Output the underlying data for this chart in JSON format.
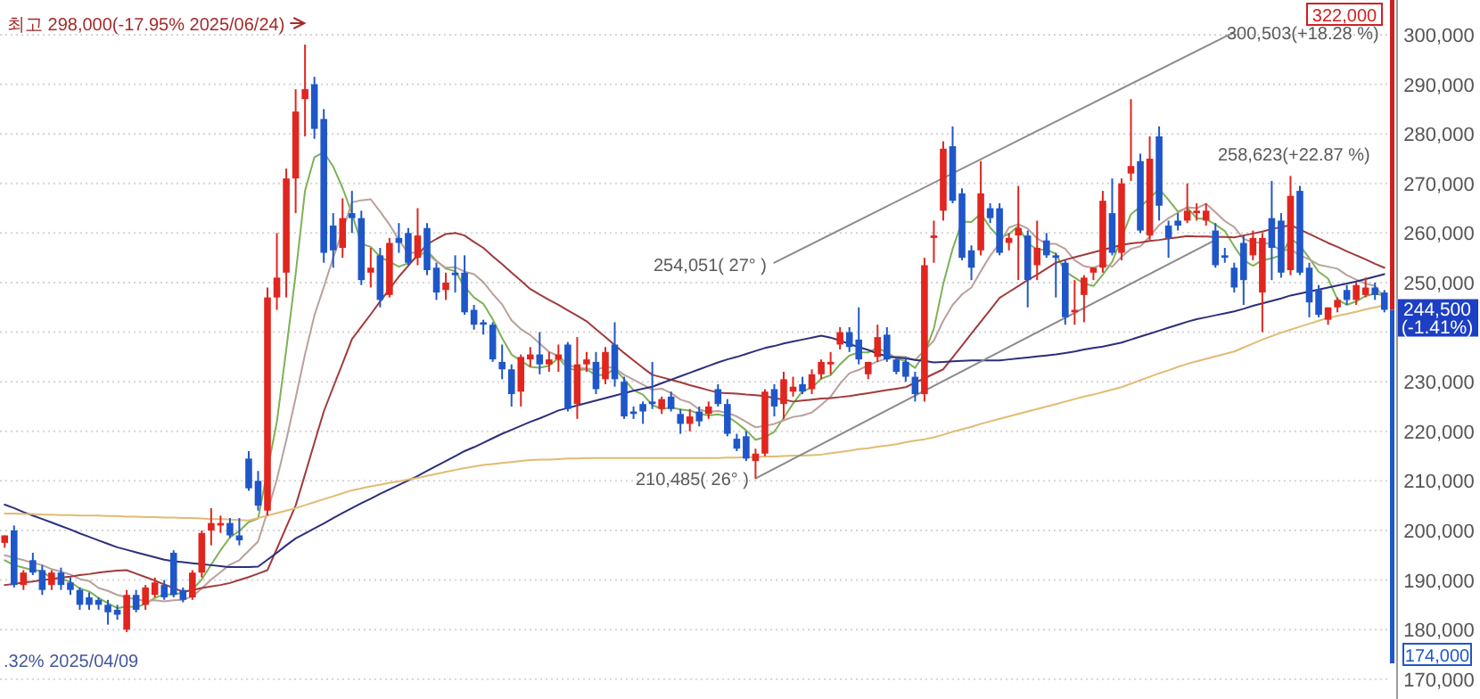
{
  "chart_data": {
    "type": "candlestick",
    "categories": [
      null,
      null,
      null,
      null,
      null,
      null,
      null,
      null,
      null,
      null,
      null,
      null,
      null,
      null,
      null,
      null,
      null,
      null,
      null,
      null,
      null,
      null,
      null,
      null,
      null,
      null,
      null,
      null,
      null,
      null,
      null,
      null,
      null,
      null,
      null,
      null,
      null,
      null,
      null,
      null,
      null,
      null,
      null,
      null,
      null,
      null,
      null,
      null,
      null,
      null,
      null,
      null,
      null,
      null,
      null,
      null,
      null,
      null,
      null,
      null,
      null,
      null,
      null,
      null,
      null,
      null,
      null,
      null,
      null,
      null,
      null,
      null,
      null,
      null,
      null,
      null,
      null,
      null,
      null,
      null,
      null,
      null,
      null,
      null,
      null,
      null,
      null,
      null,
      null,
      null,
      null,
      null,
      null,
      null,
      null,
      null,
      null,
      null,
      null,
      null,
      null,
      null,
      null,
      null,
      null,
      null,
      null,
      null,
      null,
      null,
      null,
      null,
      null,
      null,
      null,
      null,
      null,
      null,
      null,
      null,
      null,
      null,
      null,
      null,
      null,
      null,
      null,
      null,
      null,
      null,
      null,
      null,
      null,
      null,
      null,
      null,
      null,
      null,
      null,
      null,
      null,
      null,
      null,
      null,
      null,
      null,
      null,
      null
    ],
    "ohlc": [
      [
        197500,
        199000,
        196500,
        199000
      ],
      [
        200000,
        201000,
        188500,
        189000
      ],
      [
        189000,
        192000,
        188000,
        191500
      ],
      [
        194000,
        195500,
        191000,
        191500
      ],
      [
        192000,
        193000,
        187000,
        188000
      ],
      [
        189000,
        192000,
        188000,
        191500
      ],
      [
        191500,
        192500,
        188000,
        189000
      ],
      [
        189500,
        190500,
        187000,
        188000
      ],
      [
        188000,
        188500,
        184000,
        185000
      ],
      [
        186500,
        187500,
        184000,
        185000
      ],
      [
        186000,
        186500,
        184000,
        185000
      ],
      [
        185000,
        186000,
        181000,
        183500
      ],
      [
        184000,
        185000,
        182000,
        183000
      ],
      [
        180000,
        188000,
        179500,
        187000
      ],
      [
        187000,
        188000,
        183500,
        184000
      ],
      [
        185000,
        189000,
        184000,
        188500
      ],
      [
        187000,
        190500,
        186500,
        189500
      ],
      [
        189000,
        190000,
        186000,
        186500
      ],
      [
        195500,
        196000,
        186500,
        187000
      ],
      [
        188000,
        188500,
        185500,
        186000
      ],
      [
        186500,
        192000,
        186000,
        191500
      ],
      [
        191500,
        200000,
        190500,
        199500
      ],
      [
        200000,
        204500,
        197000,
        201500
      ],
      [
        201000,
        203000,
        199500,
        201500
      ],
      [
        201500,
        202500,
        198500,
        199000
      ],
      [
        199000,
        202500,
        197000,
        198000
      ],
      [
        214500,
        216000,
        208000,
        208500
      ],
      [
        210000,
        212000,
        204000,
        205000
      ],
      [
        204000,
        249000,
        203000,
        247000
      ],
      [
        247000,
        260000,
        244500,
        251000
      ],
      [
        252000,
        273000,
        247000,
        271000
      ],
      [
        271000,
        289000,
        264000,
        284500
      ],
      [
        287000,
        298000,
        279500,
        289000
      ],
      [
        290000,
        291500,
        279000,
        281000
      ],
      [
        283000,
        285000,
        254000,
        256000
      ],
      [
        261500,
        264000,
        253000,
        256500
      ],
      [
        257000,
        267000,
        255000,
        263000
      ],
      [
        264000,
        268500,
        260000,
        263000
      ],
      [
        263000,
        264500,
        249500,
        250500
      ],
      [
        252000,
        257000,
        249000,
        253000
      ],
      [
        255500,
        257000,
        245000,
        246500
      ],
      [
        247500,
        259000,
        247000,
        258000
      ],
      [
        259000,
        262000,
        256000,
        258000
      ],
      [
        260000,
        261000,
        253500,
        254000
      ],
      [
        255000,
        265000,
        253500,
        259500
      ],
      [
        261000,
        262000,
        251500,
        252500
      ],
      [
        253000,
        254000,
        246500,
        248000
      ],
      [
        248500,
        252000,
        246500,
        250000
      ],
      [
        252000,
        255500,
        248000,
        251500
      ],
      [
        252000,
        255500,
        243500,
        244000
      ],
      [
        244500,
        245500,
        240500,
        241500
      ],
      [
        242000,
        242500,
        239500,
        241500
      ],
      [
        241500,
        242000,
        234000,
        234500
      ],
      [
        234000,
        237500,
        230500,
        232500
      ],
      [
        232500,
        233500,
        225000,
        227500
      ],
      [
        228000,
        235500,
        225000,
        235000
      ],
      [
        234500,
        237000,
        233000,
        235500
      ],
      [
        235500,
        240000,
        231500,
        233500
      ],
      [
        233500,
        236000,
        232000,
        234500
      ],
      [
        234500,
        237500,
        232000,
        235500
      ],
      [
        237500,
        238000,
        224000,
        224500
      ],
      [
        225500,
        239000,
        222500,
        233500
      ],
      [
        233500,
        236000,
        232000,
        234500
      ],
      [
        234000,
        236000,
        227500,
        228500
      ],
      [
        230500,
        237000,
        229500,
        236000
      ],
      [
        237500,
        242000,
        229000,
        230500
      ],
      [
        230000,
        231000,
        222500,
        223000
      ],
      [
        224000,
        225000,
        222500,
        223500
      ],
      [
        225500,
        226000,
        221500,
        224000
      ],
      [
        226000,
        234000,
        224500,
        225500
      ],
      [
        224500,
        227000,
        223500,
        226500
      ],
      [
        227000,
        228000,
        224000,
        224500
      ],
      [
        223500,
        224500,
        219500,
        221500
      ],
      [
        221500,
        224500,
        220000,
        223000
      ],
      [
        224000,
        225000,
        221000,
        222000
      ],
      [
        223500,
        226000,
        222500,
        225000
      ],
      [
        228500,
        229500,
        225000,
        225500
      ],
      [
        225500,
        226500,
        219000,
        219500
      ],
      [
        218500,
        219500,
        216000,
        216500
      ],
      [
        219000,
        220000,
        214000,
        214500
      ],
      [
        214000,
        216500,
        210500,
        215500
      ],
      [
        215500,
        228500,
        215000,
        228000
      ],
      [
        228500,
        229500,
        223000,
        225000
      ],
      [
        225500,
        232000,
        222500,
        230500
      ],
      [
        228000,
        231000,
        227000,
        229000
      ],
      [
        229500,
        231000,
        227500,
        228000
      ],
      [
        228500,
        232500,
        227500,
        231500
      ],
      [
        231500,
        234500,
        230500,
        234000
      ],
      [
        233500,
        236000,
        231500,
        234000
      ],
      [
        237500,
        241000,
        236500,
        240000
      ],
      [
        240000,
        241000,
        236000,
        237000
      ],
      [
        238500,
        245000,
        233500,
        234500
      ],
      [
        231500,
        234000,
        230500,
        234000
      ],
      [
        235000,
        241500,
        234000,
        239000
      ],
      [
        239500,
        241000,
        234000,
        234500
      ],
      [
        234500,
        235000,
        231500,
        232000
      ],
      [
        234000,
        235000,
        230000,
        231000
      ],
      [
        231000,
        232000,
        226000,
        227500
      ],
      [
        227500,
        255000,
        226000,
        253500
      ],
      [
        259000,
        262500,
        254000,
        259500
      ],
      [
        264500,
        278500,
        262500,
        277000
      ],
      [
        277500,
        281500,
        266000,
        266500
      ],
      [
        268000,
        269000,
        254500,
        255000
      ],
      [
        256500,
        257500,
        250500,
        253000
      ],
      [
        256500,
        274500,
        255500,
        268000
      ],
      [
        265000,
        266000,
        262000,
        263000
      ],
      [
        265000,
        266000,
        255500,
        256000
      ],
      [
        258000,
        260000,
        256500,
        259000
      ],
      [
        259500,
        269500,
        250500,
        261000
      ],
      [
        259500,
        260500,
        245000,
        250500
      ],
      [
        253500,
        262500,
        250500,
        257000
      ],
      [
        258500,
        260000,
        255000,
        255500
      ],
      [
        255500,
        256000,
        247000,
        255000
      ],
      [
        254000,
        254500,
        241500,
        243000
      ],
      [
        244000,
        250500,
        241500,
        244500
      ],
      [
        247500,
        251500,
        242000,
        251000
      ],
      [
        252000,
        253000,
        250500,
        253000
      ],
      [
        253000,
        268500,
        252000,
        266500
      ],
      [
        264000,
        271000,
        255500,
        256000
      ],
      [
        256000,
        271000,
        254500,
        270000
      ],
      [
        272000,
        287000,
        270500,
        273500
      ],
      [
        274500,
        276000,
        260000,
        260500
      ],
      [
        259500,
        279500,
        258500,
        275000
      ],
      [
        279500,
        281500,
        262500,
        265500
      ],
      [
        261500,
        262500,
        255000,
        259000
      ],
      [
        262500,
        264000,
        260500,
        261500
      ],
      [
        262500,
        270000,
        262000,
        264500
      ],
      [
        264000,
        266000,
        262500,
        264500
      ],
      [
        262500,
        266000,
        261500,
        264500
      ],
      [
        260500,
        262000,
        253000,
        253500
      ],
      [
        255500,
        257000,
        254000,
        255000
      ],
      [
        253000,
        254000,
        248000,
        249000
      ],
      [
        258000,
        259500,
        245500,
        250500
      ],
      [
        255500,
        260500,
        254500,
        259000
      ],
      [
        248000,
        260000,
        240000,
        259000
      ],
      [
        263000,
        270500,
        250500,
        257000
      ],
      [
        262500,
        264000,
        251000,
        252000
      ],
      [
        252500,
        271500,
        251500,
        267500
      ],
      [
        268500,
        269500,
        251500,
        252000
      ],
      [
        253000,
        254000,
        243000,
        246000
      ],
      [
        248500,
        249500,
        243000,
        243500
      ],
      [
        242500,
        245000,
        241500,
        245000
      ],
      [
        245000,
        247000,
        244000,
        246500
      ],
      [
        248500,
        249500,
        245500,
        246500
      ],
      [
        246500,
        250000,
        245500,
        249500
      ],
      [
        247500,
        251000,
        247000,
        249000
      ],
      [
        249000,
        250000,
        246500,
        247500
      ],
      [
        248000,
        248500,
        244000,
        244500
      ]
    ],
    "colors": [
      "#e0261f",
      "#1f57c9",
      "#e0261f",
      "#1f57c9",
      "#1f57c9",
      "#e0261f",
      "#1f57c9",
      "#1f57c9",
      "#1f57c9",
      "#1f57c9",
      "#1f57c9",
      "#1f57c9",
      "#1f57c9",
      "#e0261f",
      "#1f57c9",
      "#e0261f",
      "#e0261f",
      "#1f57c9",
      "#1f57c9",
      "#1f57c9",
      "#e0261f",
      "#e0261f",
      "#e0261f",
      "#e0261f",
      "#1f57c9",
      "#1f57c9",
      "#1f57c9",
      "#1f57c9",
      "#e0261f",
      "#e0261f",
      "#e0261f",
      "#e0261f",
      "#e0261f",
      "#1f57c9",
      "#1f57c9",
      "#1f57c9",
      "#e0261f",
      "#1f57c9",
      "#1f57c9",
      "#e0261f",
      "#1f57c9",
      "#e0261f",
      "#1f57c9",
      "#1f57c9",
      "#e0261f",
      "#1f57c9",
      "#1f57c9",
      "#e0261f",
      "#1f57c9",
      "#1f57c9",
      "#1f57c9",
      "#1f57c9",
      "#1f57c9",
      "#1f57c9",
      "#1f57c9",
      "#e0261f",
      "#e0261f",
      "#1f57c9",
      "#e0261f",
      "#e0261f",
      "#1f57c9",
      "#e0261f",
      "#e0261f",
      "#1f57c9",
      "#e0261f",
      "#1f57c9",
      "#1f57c9",
      "#1f57c9",
      "#1f57c9",
      "#1f57c9",
      "#e0261f",
      "#1f57c9",
      "#1f57c9",
      "#e0261f",
      "#1f57c9",
      "#e0261f",
      "#1f57c9",
      "#1f57c9",
      "#1f57c9",
      "#1f57c9",
      "#e0261f",
      "#e0261f",
      "#1f57c9",
      "#e0261f",
      "#e0261f",
      "#1f57c9",
      "#e0261f",
      "#e0261f",
      "#e0261f",
      "#e0261f",
      "#1f57c9",
      "#1f57c9",
      "#e0261f",
      "#e0261f",
      "#1f57c9",
      "#1f57c9",
      "#1f57c9",
      "#1f57c9",
      "#e0261f",
      "#e0261f",
      "#e0261f",
      "#1f57c9",
      "#1f57c9",
      "#1f57c9",
      "#e0261f",
      "#1f57c9",
      "#1f57c9",
      "#e0261f",
      "#e0261f",
      "#1f57c9",
      "#e0261f",
      "#1f57c9",
      "#1f57c9",
      "#1f57c9",
      "#e0261f",
      "#e0261f",
      "#e0261f",
      "#e0261f",
      "#1f57c9",
      "#e0261f",
      "#e0261f",
      "#1f57c9",
      "#e0261f",
      "#1f57c9",
      "#1f57c9",
      "#1f57c9",
      "#e0261f",
      "#e0261f",
      "#e0261f",
      "#1f57c9",
      "#1f57c9",
      "#1f57c9",
      "#1f57c9",
      "#e0261f",
      "#e0261f",
      "#1f57c9",
      "#1f57c9",
      "#e0261f",
      "#1f57c9",
      "#1f57c9",
      "#1f57c9",
      "#e0261f",
      "#e0261f",
      "#1f57c9",
      "#e0261f",
      "#e0261f",
      "#1f57c9",
      "#1f57c9"
    ],
    "series": [
      {
        "type": "line",
        "color": "#7db255",
        "values": [
          194000,
          193000,
          192500,
          192000,
          191800,
          190300,
          190300,
          189600,
          188300,
          187700,
          186400,
          185300,
          184300,
          184700,
          184500,
          185200,
          186400,
          187100,
          187100,
          187500,
          188100,
          190100,
          193100,
          196000,
          198600,
          199900,
          201700,
          202400,
          null,
          221900,
          236500,
          251700,
          268500,
          275300,
          276300,
          273400,
          269100,
          263900,
          257800,
          257200,
          255200,
          254200,
          253200,
          253900,
          255200,
          256400,
          254400,
          252800,
          252300,
          249200,
          247000,
          245700,
          242600,
          238800,
          235500,
          234200,
          233000,
          232800,
          233200,
          234800,
          232700,
          232300,
          232500,
          231300,
          231400,
          232600,
          230500,
          228300,
          227400,
          225300,
          224500,
          224800,
          224400,
          224200,
          223500,
          223200,
          223400,
          223000,
          221700,
          220200,
          218300,
          218800,
          219900,
          222700,
          225600,
          228100,
          228800,
          230600,
          231300,
          233500,
          235300,
          235900,
          235900,
          236900,
          235800,
          234800,
          234100,
          232800,
          235700,
          240700,
          249700,
          256800,
          262300,
          262200,
          263900,
          261100,
          259000,
          259800,
          261400,
          257900,
          256700,
          256600,
          255800,
          252200,
          251000,
          249800,
          249300,
          251600,
          254200,
          null,
          263800,
          265300,
          267000,
          268900,
          266700,
          264300,
          265100,
          263000,
          262800,
          261700,
          260400,
          257300,
          254500,
          253400,
          254500,
          254900,
          255500,
          258900,
          257500,
          254900,
          252200,
          250800,
          246600,
          245500,
          246200,
          247300,
          247800,
          247400
        ]
      },
      {
        "type": "line",
        "color": "#b9a09c",
        "values": [
          195000,
          194500,
          194000,
          193500,
          193000,
          192200,
          191700,
          191100,
          190200,
          189800,
          188400,
          187800,
          187000,
          186500,
          186100,
          185800,
          185900,
          185700,
          185900,
          186000,
          186700,
          188300,
          190100,
          191600,
          193100,
          194000,
          195900,
          197800,
          203800,
          210300,
          218200,
          226700,
          235500,
          243400,
          249100,
          255000,
          260400,
          266200,
          266600,
          266800,
          264300,
          261700,
          258600,
          255900,
          256200,
          255800,
          254300,
          253000,
          253100,
          252200,
          251700,
          250100,
          247700,
          245600,
          242400,
          240600,
          239400,
          237700,
          236000,
          235200,
          233500,
          232700,
          232700,
          232300,
          233100,
          232700,
          231400,
          230400,
          229400,
          228400,
          228600,
          227700,
          226400,
          225800,
          224400,
          223900,
          224100,
          223700,
          223000,
          221900,
          220800,
          221100,
          221500,
          222200,
          222900,
          223200,
          223800,
          225300,
          227000,
          229600,
          231700,
          232400,
          233300,
          234100,
          234700,
          235100,
          235000,
          234400,
          236300,
          238300,
          242300,
          245500,
          247600,
          249000,
          252300,
          255400,
          257900,
          261100,
          261800,
          260900,
          258900,
          257800,
          257800,
          256800,
          254500,
          253300,
          253000,
          253700,
          253200,
          255200,
          256800,
          257300,
          259300,
          261600,
          263000,
          264100,
          265200,
          265000,
          265900,
          264200,
          262400,
          261200,
          258800,
          258100,
          258100,
          257700,
          256400,
          256700,
          255500,
          254700,
          253600,
          253200,
          252800,
          251500,
          250600,
          249800,
          249300,
          247000
        ]
      },
      {
        "type": "line",
        "color": "#a23a3a",
        "values": [
          189000,
          189200,
          189500,
          189700,
          190000,
          190200,
          190500,
          190700,
          191000,
          191200,
          191500,
          191700,
          191900,
          192000,
          191300,
          190600,
          189900,
          189100,
          188400,
          187600,
          188000,
          188400,
          188700,
          189000,
          189400,
          190000,
          190600,
          191300,
          192000,
          196300,
          200700,
          205000,
          211300,
          217700,
          224000,
          228900,
          233700,
          238600,
          241100,
          243600,
          246200,
          248700,
          251200,
          253400,
          255600,
          257700,
          258800,
          259800,
          260000,
          259500,
          258200,
          257000,
          255300,
          253700,
          252000,
          250400,
          248700,
          247600,
          246500,
          245500,
          244400,
          243300,
          242200,
          240600,
          239000,
          237400,
          235800,
          234300,
          232800,
          231400,
          230900,
          230400,
          229900,
          229300,
          228800,
          228300,
          227800,
          227700,
          227600,
          227400,
          227300,
          227100,
          226700,
          226400,
          226000,
          226200,
          226400,
          226600,
          226700,
          226900,
          227100,
          227400,
          227700,
          228000,
          228300,
          228600,
          228900,
          229800,
          230700,
          231600,
          232500,
          234900,
          237300,
          239700,
          242100,
          244500,
          246900,
          248100,
          249300,
          250500,
          251600,
          252800,
          254000,
          254600,
          255100,
          255600,
          256100,
          256600,
          257100,
          257600,
          257900,
          258100,
          258400,
          258600,
          258900,
          259100,
          259400,
          259300,
          259300,
          259200,
          259200,
          259100,
          259500,
          259900,
          260300,
          260800,
          261200,
          261600,
          260700,
          259800,
          258900,
          258000,
          257200,
          256300,
          255500,
          254700,
          253800,
          253000
        ]
      },
      {
        "type": "line",
        "color": "#2b2f7a",
        "values": [
          205200,
          204500,
          203700,
          203000,
          202300,
          201600,
          200900,
          200200,
          199400,
          198700,
          198000,
          197300,
          196600,
          196100,
          195600,
          195100,
          194600,
          194100,
          193800,
          193600,
          193400,
          193200,
          193000,
          192800,
          192600,
          192600,
          192600,
          192700,
          194100,
          195500,
          197000,
          198400,
          199400,
          200400,
          201400,
          202500,
          203500,
          204500,
          205500,
          206400,
          207400,
          208300,
          209200,
          210100,
          211000,
          212000,
          213000,
          214000,
          215000,
          216000,
          216800,
          217700,
          218600,
          219500,
          220300,
          221100,
          221900,
          222600,
          223400,
          224200,
          224700,
          225200,
          225700,
          226200,
          226700,
          227200,
          227700,
          228200,
          228600,
          229000,
          229700,
          230400,
          231100,
          231800,
          232500,
          233200,
          233900,
          234500,
          235000,
          235600,
          236200,
          236800,
          237200,
          237700,
          238100,
          238500,
          238900,
          239300,
          238900,
          238300,
          237600,
          237000,
          236400,
          235700,
          235100,
          234900,
          234700,
          234400,
          234200,
          233900,
          234000,
          234100,
          234200,
          234300,
          234300,
          234300,
          234300,
          234500,
          234700,
          234900,
          235100,
          235300,
          235500,
          235800,
          236100,
          236500,
          236800,
          237100,
          237500,
          237900,
          238500,
          239100,
          239700,
          240300,
          240900,
          241500,
          242100,
          242600,
          243000,
          243400,
          243800,
          244200,
          244700,
          245300,
          245800,
          246300,
          246800,
          247400,
          247800,
          248200,
          248600,
          249000,
          249400,
          249800,
          250200,
          250700,
          251200,
          251700
        ]
      },
      {
        "type": "line",
        "color": "#e2bb72",
        "values": [
          203400,
          203400,
          203300,
          203300,
          203200,
          203200,
          203100,
          203100,
          203000,
          203000,
          203000,
          202900,
          202900,
          202800,
          202800,
          202700,
          202700,
          202600,
          202600,
          202500,
          202500,
          202400,
          202300,
          202300,
          202200,
          202100,
          202000,
          202500,
          203000,
          203500,
          204000,
          204500,
          205100,
          205700,
          206300,
          206900,
          207500,
          208100,
          208500,
          208900,
          209200,
          209600,
          209900,
          210300,
          210600,
          211000,
          211400,
          211800,
          212200,
          212600,
          212900,
          213200,
          213400,
          213600,
          213800,
          214000,
          214200,
          214300,
          214300,
          214400,
          214500,
          214500,
          214600,
          214600,
          214600,
          214600,
          214600,
          214600,
          214600,
          214600,
          214600,
          214600,
          214600,
          214600,
          214600,
          214600,
          214600,
          214700,
          214700,
          214800,
          214800,
          214900,
          214900,
          215000,
          215100,
          215100,
          215200,
          215300,
          215600,
          215800,
          216100,
          216400,
          216600,
          216900,
          217100,
          217400,
          217800,
          218100,
          218400,
          218800,
          219300,
          219900,
          220400,
          220900,
          221500,
          222000,
          222500,
          223000,
          223500,
          224000,
          224500,
          225000,
          225500,
          226000,
          226500,
          227000,
          227400,
          227900,
          228400,
          228900,
          229600,
          230300,
          231000,
          231700,
          232300,
          233000,
          233600,
          234100,
          234600,
          235100,
          235600,
          236100,
          236900,
          237700,
          238500,
          239200,
          239900,
          240500,
          241100,
          241700,
          242300,
          242900,
          243300,
          243700,
          244100,
          244600,
          245000,
          245400
        ]
      },
      {
        "type": "line",
        "color": "#8a8a8a",
        "values": [
          null,
          null,
          null,
          null,
          null,
          null,
          null,
          null,
          null,
          null,
          null,
          null,
          null,
          null,
          null,
          null,
          null,
          null,
          null,
          null,
          null,
          null,
          null,
          null,
          null,
          null,
          null,
          null,
          null,
          null,
          null,
          null,
          null,
          null,
          null,
          null,
          null,
          null,
          null,
          null,
          null,
          null,
          null,
          null,
          null,
          null,
          null,
          null,
          null,
          null,
          null,
          null,
          null,
          null,
          null,
          null,
          null,
          null,
          null,
          null,
          null,
          null,
          null,
          null,
          null,
          null,
          null,
          null,
          null,
          null,
          null,
          null,
          null,
          null,
          null,
          null,
          null,
          null,
          null,
          null,
          null,
          null,
          254000,
          null,
          null,
          null,
          null,
          null,
          null,
          null,
          null,
          null,
          null,
          null,
          null,
          null,
          null,
          null,
          null,
          null,
          null,
          null,
          null,
          null,
          null,
          null,
          null,
          null,
          null,
          null,
          null,
          null,
          null,
          null,
          null,
          null,
          null,
          null,
          null,
          null,
          null,
          null,
          null,
          null,
          null,
          null,
          null,
          null,
          null,
          null,
          null,
          300500,
          null,
          null,
          null,
          null,
          null,
          null,
          null,
          null,
          null,
          null,
          null,
          null,
          null,
          null,
          null,
          null
        ]
      },
      {
        "type": "line",
        "color": "#8a8a8a",
        "values": [
          null,
          null,
          null,
          null,
          null,
          null,
          null,
          null,
          null,
          null,
          null,
          null,
          null,
          null,
          null,
          null,
          null,
          null,
          null,
          null,
          null,
          null,
          null,
          null,
          null,
          null,
          null,
          null,
          null,
          null,
          null,
          null,
          null,
          null,
          null,
          null,
          null,
          null,
          null,
          null,
          null,
          null,
          null,
          null,
          null,
          null,
          null,
          null,
          null,
          null,
          null,
          null,
          null,
          null,
          null,
          null,
          null,
          null,
          null,
          null,
          null,
          null,
          null,
          null,
          null,
          null,
          null,
          null,
          null,
          null,
          null,
          null,
          null,
          null,
          null,
          null,
          null,
          null,
          null,
          null,
          210500,
          null,
          null,
          null,
          null,
          null,
          null,
          null,
          null,
          null,
          null,
          null,
          null,
          null,
          null,
          null,
          null,
          null,
          null,
          null,
          null,
          null,
          null,
          null,
          null,
          null,
          null,
          null,
          null,
          null,
          null,
          null,
          null,
          null,
          null,
          null,
          null,
          null,
          null,
          null,
          null,
          null,
          null,
          null,
          null,
          null,
          null,
          null,
          null,
          258600,
          null,
          null,
          null,
          null,
          null,
          null,
          null,
          null,
          null,
          null,
          null,
          null,
          null,
          null,
          null,
          null,
          null,
          null
        ]
      }
    ],
    "ylim": [
      166000,
      307000
    ],
    "yticks": [
      {
        "value": 170000,
        "label": "170,000"
      },
      {
        "value": 180000,
        "label": "180,000"
      },
      {
        "value": 190000,
        "label": "190,000"
      },
      {
        "value": 200000,
        "label": "200,000"
      },
      {
        "value": 210000,
        "label": "210,000"
      },
      {
        "value": 220000,
        "label": "220,000"
      },
      {
        "value": 230000,
        "label": "230,000"
      },
      {
        "value": 240000,
        "label": null
      },
      {
        "value": 250000,
        "label": "250,000"
      },
      {
        "value": 260000,
        "label": "260,000"
      },
      {
        "value": 270000,
        "label": "270,000"
      },
      {
        "value": 280000,
        "label": "280,000"
      },
      {
        "value": 290000,
        "label": "290,000"
      },
      {
        "value": 300000,
        "label": "300,000"
      }
    ],
    "grid": "y",
    "annotations": [
      "최고 298,000(-17.95% 2025/06/24)",
      ".32% 2025/04/09",
      "254,051( 27° )",
      "210,485( 26° )",
      "300,503(+18.28 %)",
      "258,623(+22.87 %)",
      "244,500\n(-1.41%)",
      "322,000",
      "174,000"
    ]
  }
}
